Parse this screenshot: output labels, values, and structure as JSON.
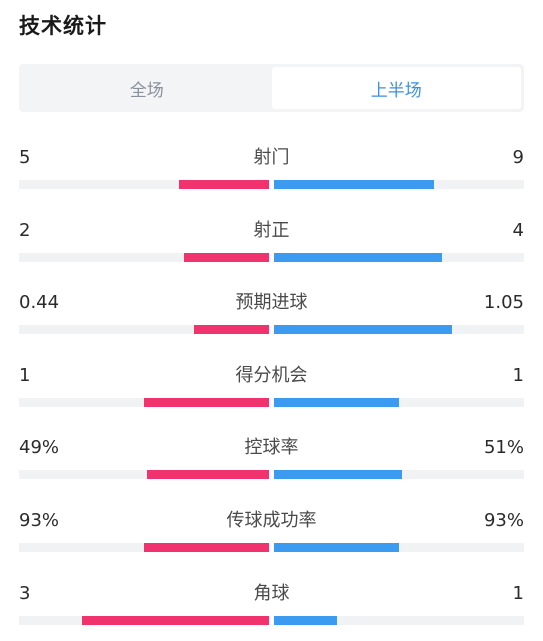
{
  "header": {
    "title": "技术统计"
  },
  "tabs": [
    {
      "label": "全场",
      "active": false
    },
    {
      "label": "上半场",
      "active": true
    }
  ],
  "colors": {
    "home": "#f0326e",
    "away": "#3b9bf0",
    "active_tab": "#3a8fe8"
  },
  "stats": [
    {
      "label": "射门",
      "left": "5",
      "right": "9",
      "left_fill": 0.36,
      "right_fill": 0.64
    },
    {
      "label": "射正",
      "left": "2",
      "right": "4",
      "left_fill": 0.34,
      "right_fill": 0.67
    },
    {
      "label": "预期进球",
      "left": "0.44",
      "right": "1.05",
      "left_fill": 0.3,
      "right_fill": 0.71
    },
    {
      "label": "得分机会",
      "left": "1",
      "right": "1",
      "left_fill": 0.5,
      "right_fill": 0.5
    },
    {
      "label": "控球率",
      "left": "49%",
      "right": "51%",
      "left_fill": 0.49,
      "right_fill": 0.51
    },
    {
      "label": "传球成功率",
      "left": "93%",
      "right": "93%",
      "left_fill": 0.5,
      "right_fill": 0.5
    },
    {
      "label": "角球",
      "left": "3",
      "right": "1",
      "left_fill": 0.75,
      "right_fill": 0.25
    }
  ]
}
